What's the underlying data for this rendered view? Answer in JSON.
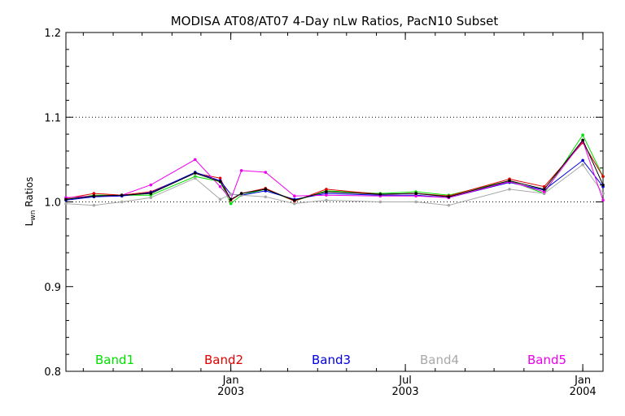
{
  "chart_data": {
    "type": "line",
    "title": "MODISA AT08/AT07 4-Day nLw Ratios, PacN10 Subset",
    "ylabel": {
      "main": "L",
      "sub": "wn",
      "rest": " Ratios"
    },
    "ylim": [
      0.8,
      1.2
    ],
    "xlim": [
      "2002-07-14",
      "2004-01-22"
    ],
    "y_ticks": [
      "0.8",
      "0.9",
      "1.0",
      "1.1",
      "1.2"
    ],
    "x_ticks": [
      {
        "x": "2003-01-01",
        "label_top": "Jan",
        "label_bottom": "2003"
      },
      {
        "x": "2003-07-01",
        "label_top": "Jul",
        "label_bottom": "2003"
      },
      {
        "x": "2004-01-01",
        "label_top": "Jan",
        "label_bottom": "2004"
      }
    ],
    "gridlines_y": [
      1.0,
      1.1
    ],
    "x": [
      "2002-07-14",
      "2002-08-12",
      "2002-09-10",
      "2002-10-10",
      "2002-11-25",
      "2002-12-21",
      "2003-01-01",
      "2003-01-12",
      "2003-02-06",
      "2003-03-08",
      "2003-04-10",
      "2003-06-05",
      "2003-07-12",
      "2003-08-15",
      "2003-10-17",
      "2003-11-22",
      "2004-01-01",
      "2004-01-22"
    ],
    "series": [
      {
        "name": "Band1",
        "color": "#00e000",
        "values": [
          1.003,
          1.008,
          1.008,
          1.008,
          1.03,
          1.024,
          0.998,
          1.008,
          1.015,
          1.001,
          1.013,
          1.01,
          1.012,
          1.008,
          1.025,
          1.01,
          1.079,
          1.03
        ]
      },
      {
        "name": "Band2",
        "color": "#e00000",
        "values": [
          1.004,
          1.01,
          1.008,
          1.012,
          1.034,
          1.028,
          1.002,
          1.01,
          1.016,
          1.001,
          1.015,
          1.009,
          1.01,
          1.007,
          1.027,
          1.018,
          1.07,
          1.03
        ]
      },
      {
        "name": "Band3",
        "color": "#0000dd",
        "values": [
          1.002,
          1.006,
          1.007,
          1.011,
          1.035,
          1.025,
          1.009,
          1.008,
          1.013,
          1.003,
          1.01,
          1.008,
          1.008,
          1.005,
          1.023,
          1.014,
          1.049,
          1.018
        ]
      },
      {
        "name": "Band4",
        "color": "#a8a8a8",
        "values": [
          0.998,
          0.996,
          1.0,
          1.005,
          1.028,
          1.003,
          1.009,
          1.008,
          1.006,
          0.998,
          1.002,
          1.0,
          1.0,
          0.996,
          1.015,
          1.01,
          1.044,
          1.01
        ]
      },
      {
        "name": "Band5",
        "color": "#ee00ee",
        "values": [
          1.005,
          1.007,
          1.008,
          1.02,
          1.05,
          1.018,
          1.003,
          1.037,
          1.035,
          1.007,
          1.008,
          1.007,
          1.007,
          1.005,
          1.024,
          1.012,
          1.072,
          1.002
        ]
      },
      {
        "name": "",
        "color": "#000000",
        "values": [
          1.003,
          1.007,
          1.008,
          1.01,
          1.034,
          1.024,
          1.003,
          1.01,
          1.015,
          1.002,
          1.012,
          1.009,
          1.01,
          1.006,
          1.025,
          1.015,
          1.073,
          1.02
        ]
      }
    ]
  }
}
